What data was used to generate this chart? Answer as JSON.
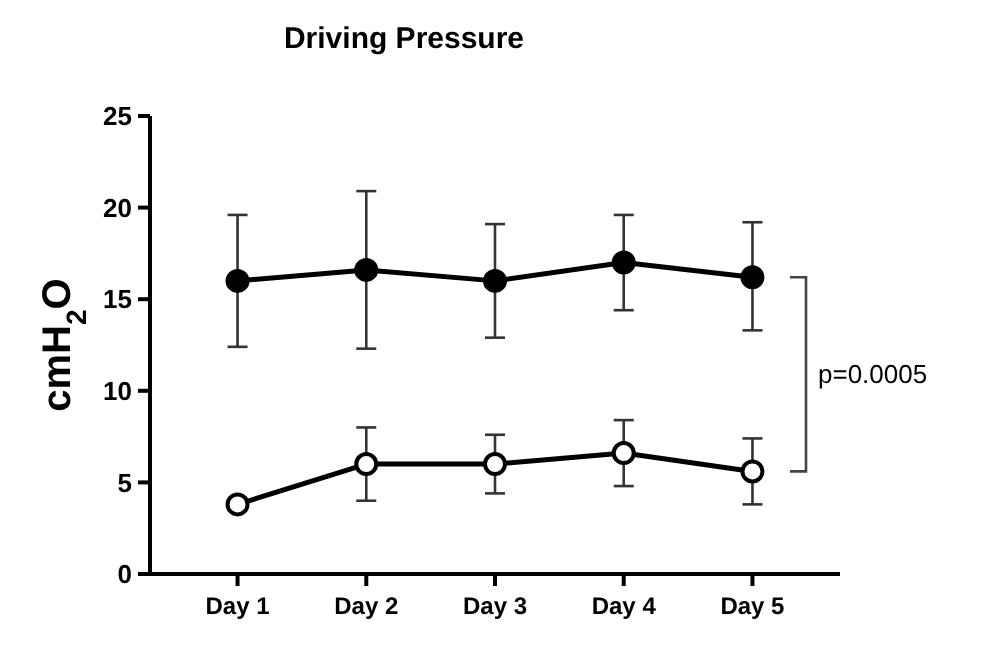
{
  "chart_data": {
    "type": "line",
    "title": "Driving Pressure",
    "ylabel": "cmH$_{2}$O",
    "categories": [
      "Day 1",
      "Day 2",
      "Day 3",
      "Day 4",
      "Day 5"
    ],
    "series": [
      {
        "color": "#000000",
        "values": [
          16,
          16.6,
          16,
          17,
          16.2
        ],
        "errors": [
          [
            12.4,
            19.6
          ],
          [
            12.3,
            20.9
          ],
          [
            12.9,
            19.1
          ],
          [
            14.4,
            19.6
          ],
          [
            13.3,
            19.2
          ]
        ]
      },
      {
        "color": "#000000",
        "values": [
          3.8,
          6,
          6,
          6.6,
          5.6
        ],
        "errors": [
          null,
          [
            4,
            8
          ],
          [
            4.4,
            7.6
          ],
          [
            4.8,
            8.4
          ],
          [
            3.8,
            7.4
          ]
        ]
      }
    ],
    "ylim": [
      0,
      25
    ],
    "yticks": [
      0,
      5,
      10,
      15,
      20,
      25
    ],
    "grid": false,
    "marker": "circle",
    "line_style": "solid",
    "annotations": [
      "p=0.0005"
    ]
  }
}
